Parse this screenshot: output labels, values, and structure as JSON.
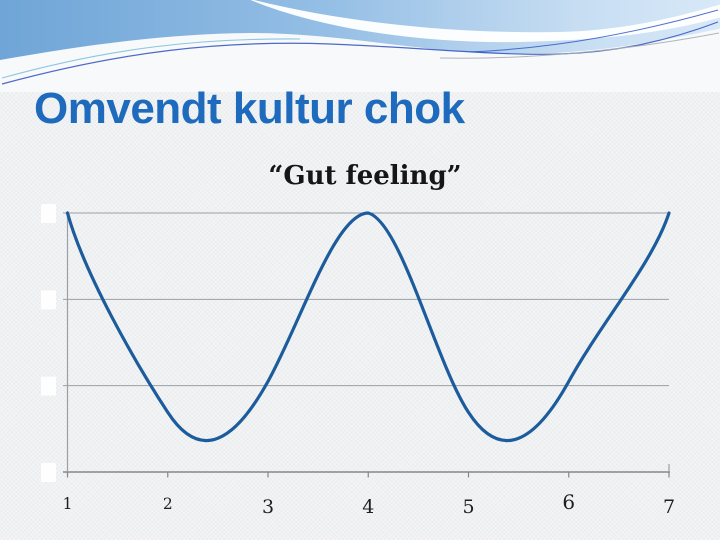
{
  "slide": {
    "title": "Omvendt kultur chok",
    "title_color": "#1e6abc",
    "background_color": "#f2f4f5",
    "header_wave_blue": "#79abdb"
  },
  "chart_data": {
    "type": "line",
    "title": "“Gut feeling”",
    "x": [
      1,
      2,
      3,
      4,
      5,
      6,
      7
    ],
    "x_tick_labels": [
      "1",
      "2",
      "3",
      "4",
      "5",
      "6",
      "7"
    ],
    "series": [
      {
        "name": "Gut feeling",
        "values": [
          10,
          2.3,
          3.5,
          10,
          2.3,
          3.5,
          10
        ],
        "color": "#1c5c9c",
        "smooth": true
      }
    ],
    "xlabel": "",
    "ylabel": "",
    "ylim": [
      0,
      10
    ],
    "y_tick_labels_visible": false,
    "y_gridline_values": [
      0,
      3.33,
      6.67,
      10
    ],
    "grid": "horizontal",
    "legend_position": "none",
    "gridline_color": "#9aa0a5",
    "axis_color": "#85888b"
  }
}
